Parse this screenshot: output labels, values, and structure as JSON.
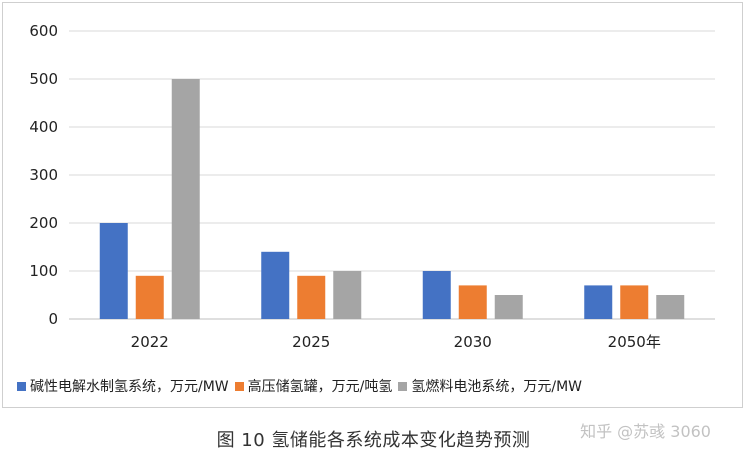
{
  "chart_data": {
    "type": "bar",
    "title": "",
    "categories": [
      "2022",
      "2025",
      "2030",
      "2050年"
    ],
    "series": [
      {
        "name": "碱性电解水制氢系统，万元/MW",
        "color": "#4472c4",
        "values": [
          200,
          140,
          100,
          70
        ]
      },
      {
        "name": "高压储氢罐，万元/吨氢",
        "color": "#ed7d31",
        "values": [
          90,
          90,
          70,
          70
        ]
      },
      {
        "name": "氢燃料电池系统，万元/MW",
        "color": "#a5a5a5",
        "values": [
          500,
          100,
          50,
          50
        ]
      }
    ],
    "yticks": [
      "0",
      "100",
      "200",
      "300",
      "400",
      "500",
      "600"
    ],
    "ylim": [
      0,
      600
    ],
    "grid": true,
    "legend_position": "bottom"
  },
  "caption": "图 10 氢储能各系统成本变化趋势预测",
  "watermark": "知乎 @苏彧 3060"
}
